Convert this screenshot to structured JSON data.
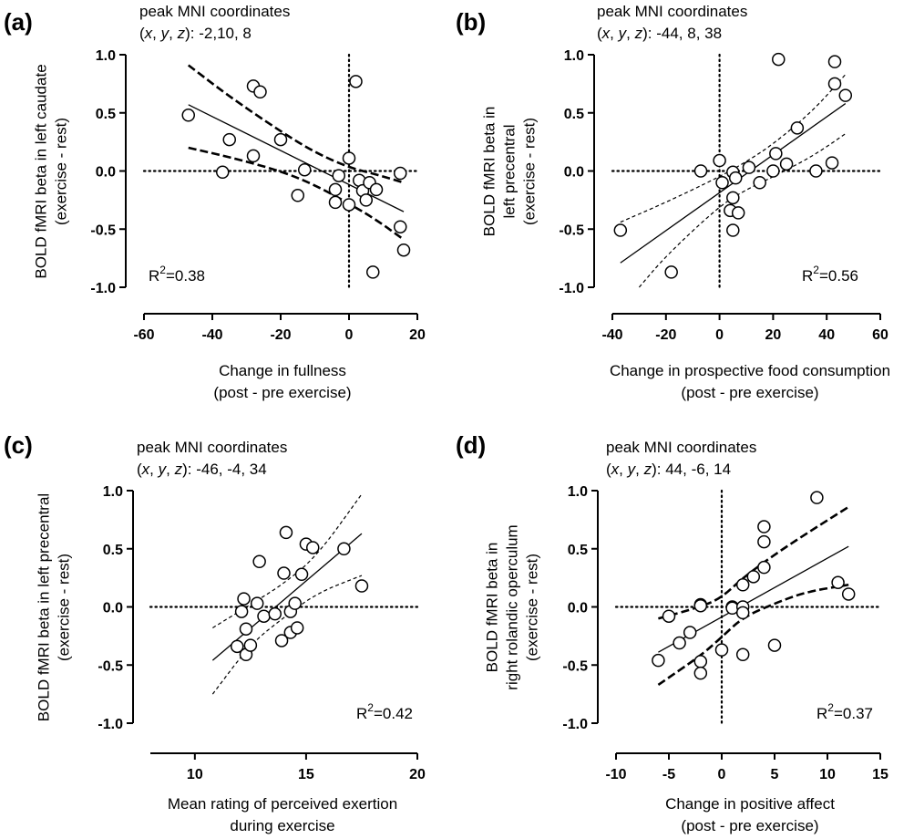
{
  "chart_data": [
    {
      "type": "scatter",
      "panel_label": "(a)",
      "header_line1": "peak MNI coordinates",
      "header_coords_prefix": "(x, y, z)",
      "header_coords_value": ": -2,10, 8",
      "xlabel_lines": [
        "Change in fullness",
        "(post - pre exercise)"
      ],
      "ylabel_lines": [
        "BOLD fMRI beta in left caudate",
        "(exercise - rest)"
      ],
      "r2_label": "R2=0.38",
      "xlim": [
        -60,
        20
      ],
      "ylim": [
        -1.0,
        1.0
      ],
      "xticks": [
        -60,
        -40,
        -20,
        0,
        20
      ],
      "xtick_labels": [
        "-60",
        "-40",
        "-20",
        "0",
        "20"
      ],
      "yticks": [
        -1.0,
        -0.5,
        0.0,
        0.5,
        1.0
      ],
      "ytick_labels": [
        "-1.0",
        "-0.5",
        "0.0",
        "0.5",
        "1.0"
      ],
      "zero_lines": [
        "x",
        "y"
      ],
      "ci_style": "heavy",
      "points": [
        [
          -47,
          0.48
        ],
        [
          -35,
          0.27
        ],
        [
          -37,
          -0.01
        ],
        [
          -28,
          0.73
        ],
        [
          -26,
          0.68
        ],
        [
          -28,
          0.13
        ],
        [
          -20,
          0.27
        ],
        [
          -13,
          0.01
        ],
        [
          -15,
          -0.21
        ],
        [
          -4,
          -0.16
        ],
        [
          -3,
          -0.04
        ],
        [
          -4,
          -0.27
        ],
        [
          0,
          0.11
        ],
        [
          0,
          -0.29
        ],
        [
          2,
          0.77
        ],
        [
          3,
          -0.08
        ],
        [
          4,
          -0.17
        ],
        [
          5,
          -0.25
        ],
        [
          6,
          -0.1
        ],
        [
          8,
          -0.16
        ],
        [
          7,
          -0.87
        ],
        [
          15,
          -0.02
        ],
        [
          15,
          -0.48
        ],
        [
          16,
          -0.68
        ]
      ],
      "fit": [
        [
          -47,
          0.57
        ],
        [
          16,
          -0.35
        ]
      ],
      "ci_upper": [
        [
          -47,
          0.91
        ],
        [
          -35,
          0.64
        ],
        [
          -20,
          0.34
        ],
        [
          -10,
          0.16
        ],
        [
          0,
          0.03
        ],
        [
          8,
          -0.03
        ],
        [
          16,
          -0.1
        ]
      ],
      "ci_lower": [
        [
          -47,
          0.2
        ],
        [
          -35,
          0.12
        ],
        [
          -20,
          0.0
        ],
        [
          -10,
          -0.12
        ],
        [
          0,
          -0.28
        ],
        [
          8,
          -0.42
        ],
        [
          16,
          -0.59
        ]
      ]
    },
    {
      "type": "scatter",
      "panel_label": "(b)",
      "header_line1": "peak MNI coordinates",
      "header_coords_prefix": "(x, y, z)",
      "header_coords_value": ": -44, 8, 38",
      "xlabel_lines": [
        "Change in prospective food consumption",
        "(post - pre exercise)"
      ],
      "ylabel_lines": [
        "BOLD fMRI beta in",
        "left precentral",
        "(exercise - rest)"
      ],
      "r2_label": "R2=0.56",
      "xlim": [
        -40,
        60
      ],
      "ylim": [
        -1.0,
        1.0
      ],
      "xticks": [
        -40,
        -20,
        0,
        20,
        40,
        60
      ],
      "xtick_labels": [
        "-40",
        "-20",
        "0",
        "20",
        "40",
        "60"
      ],
      "yticks": [
        -1.0,
        -0.5,
        0.0,
        0.5,
        1.0
      ],
      "ytick_labels": [
        "-1.0",
        "-0.5",
        "0.0",
        "0.5",
        "1.0"
      ],
      "zero_lines": [
        "x",
        "y"
      ],
      "ci_style": "light",
      "points": [
        [
          -37,
          -0.51
        ],
        [
          -18,
          -0.87
        ],
        [
          -7,
          0.0
        ],
        [
          0,
          0.09
        ],
        [
          1,
          -0.1
        ],
        [
          4,
          -0.34
        ],
        [
          5,
          -0.01
        ],
        [
          5,
          -0.23
        ],
        [
          5,
          -0.51
        ],
        [
          6,
          -0.06
        ],
        [
          7,
          -0.36
        ],
        [
          11,
          0.03
        ],
        [
          15,
          -0.1
        ],
        [
          20,
          0.0
        ],
        [
          21,
          0.15
        ],
        [
          22,
          0.96
        ],
        [
          25,
          0.06
        ],
        [
          29,
          0.37
        ],
        [
          36,
          0.0
        ],
        [
          42,
          0.07
        ],
        [
          43,
          0.94
        ],
        [
          43,
          0.75
        ],
        [
          47,
          0.65
        ]
      ],
      "fit": [
        [
          -37,
          -0.79
        ],
        [
          47,
          0.58
        ]
      ],
      "ci_upper": [
        [
          -37,
          -0.44
        ],
        [
          -20,
          -0.27
        ],
        [
          0,
          -0.05
        ],
        [
          10,
          0.08
        ],
        [
          20,
          0.23
        ],
        [
          35,
          0.52
        ],
        [
          47,
          0.83
        ]
      ],
      "ci_lower": [
        [
          -30,
          -1.0
        ],
        [
          -20,
          -0.73
        ],
        [
          0,
          -0.3
        ],
        [
          10,
          -0.16
        ],
        [
          20,
          -0.05
        ],
        [
          35,
          0.13
        ],
        [
          47,
          0.32
        ]
      ]
    },
    {
      "type": "scatter",
      "panel_label": "(c)",
      "header_line1": "peak MNI coordinates",
      "header_coords_prefix": "(x, y, z)",
      "header_coords_value": ": -46, -4, 34",
      "xlabel_lines": [
        "Mean rating of perceived exertion",
        "during exercise"
      ],
      "ylabel_lines": [
        "BOLD fMRI beta in left precentral",
        "(exercise - rest)"
      ],
      "r2_label": "R2=0.42",
      "xlim": [
        8,
        20
      ],
      "ylim": [
        -1.0,
        1.0
      ],
      "xticks": [
        10,
        15,
        20
      ],
      "xtick_labels": [
        "10",
        "15",
        "20"
      ],
      "yticks": [
        -1.0,
        -0.5,
        0.0,
        0.5,
        1.0
      ],
      "ytick_labels": [
        "-1.0",
        "-0.5",
        "0.0",
        "0.5",
        "1.0"
      ],
      "zero_lines": [
        "y"
      ],
      "ci_style": "light",
      "points": [
        [
          11.9,
          -0.34
        ],
        [
          12.1,
          -0.04
        ],
        [
          12.2,
          0.07
        ],
        [
          12.3,
          -0.19
        ],
        [
          12.3,
          -0.41
        ],
        [
          12.5,
          -0.33
        ],
        [
          12.8,
          0.03
        ],
        [
          12.9,
          0.39
        ],
        [
          13.1,
          -0.08
        ],
        [
          13.6,
          -0.06
        ],
        [
          13.9,
          -0.29
        ],
        [
          14.0,
          0.29
        ],
        [
          14.1,
          0.64
        ],
        [
          14.3,
          -0.22
        ],
        [
          14.3,
          -0.04
        ],
        [
          14.5,
          0.03
        ],
        [
          14.6,
          -0.18
        ],
        [
          14.8,
          0.28
        ],
        [
          15.0,
          0.54
        ],
        [
          15.3,
          0.51
        ],
        [
          16.7,
          0.5
        ],
        [
          17.5,
          0.18
        ]
      ],
      "fit": [
        [
          10.8,
          -0.46
        ],
        [
          17.5,
          0.63
        ]
      ],
      "ci_upper": [
        [
          10.8,
          -0.18
        ],
        [
          12.5,
          0.02
        ],
        [
          14,
          0.2
        ],
        [
          15.5,
          0.44
        ],
        [
          17.5,
          0.97
        ]
      ],
      "ci_lower": [
        [
          10.8,
          -0.75
        ],
        [
          12.5,
          -0.32
        ],
        [
          14,
          -0.09
        ],
        [
          15.5,
          0.12
        ],
        [
          17.5,
          0.27
        ]
      ]
    },
    {
      "type": "scatter",
      "panel_label": "(d)",
      "header_line1": "peak MNI coordinates",
      "header_coords_prefix": "(x, y, z)",
      "header_coords_value": ": 44, -6, 14",
      "xlabel_lines": [
        "Change in positive affect",
        "(post - pre exercise)"
      ],
      "ylabel_lines": [
        "BOLD fMRI beta in",
        "right rolandic operculum",
        "(exercise - rest)"
      ],
      "r2_label": "R2=0.37",
      "xlim": [
        -10,
        15
      ],
      "ylim": [
        -1.0,
        1.0
      ],
      "xticks": [
        -10,
        -5,
        0,
        5,
        10,
        15
      ],
      "xtick_labels": [
        "-10",
        "-5",
        "0",
        "5",
        "10",
        "15"
      ],
      "yticks": [
        -1.0,
        -0.5,
        0.0,
        0.5,
        1.0
      ],
      "ytick_labels": [
        "-1.0",
        "-0.5",
        "0.0",
        "0.5",
        "1.0"
      ],
      "zero_lines": [
        "x",
        "y"
      ],
      "ci_style": "heavy",
      "points": [
        [
          -6,
          -0.46
        ],
        [
          -5,
          -0.08
        ],
        [
          -4,
          -0.31
        ],
        [
          -3,
          -0.22
        ],
        [
          -2,
          0.02
        ],
        [
          -2,
          0.01
        ],
        [
          -2,
          -0.47
        ],
        [
          -2,
          -0.57
        ],
        [
          0,
          -0.37
        ],
        [
          1,
          0.0
        ],
        [
          1,
          -0.01
        ],
        [
          2,
          0.19
        ],
        [
          2,
          0.0
        ],
        [
          2,
          -0.05
        ],
        [
          2,
          -0.41
        ],
        [
          3,
          0.26
        ],
        [
          4,
          0.69
        ],
        [
          4,
          0.56
        ],
        [
          4,
          0.34
        ],
        [
          5,
          -0.33
        ],
        [
          9,
          0.94
        ],
        [
          11,
          0.21
        ],
        [
          12,
          0.11
        ]
      ],
      "fit": [
        [
          -6,
          -0.39
        ],
        [
          12,
          0.52
        ]
      ],
      "ci_upper": [
        [
          -6,
          -0.1
        ],
        [
          -2,
          0.0
        ],
        [
          0,
          0.08
        ],
        [
          2,
          0.25
        ],
        [
          5,
          0.45
        ],
        [
          8,
          0.63
        ],
        [
          12,
          0.86
        ]
      ],
      "ci_lower": [
        [
          -6,
          -0.67
        ],
        [
          -2,
          -0.42
        ],
        [
          0,
          -0.26
        ],
        [
          2,
          -0.09
        ],
        [
          5,
          0.03
        ],
        [
          8,
          0.13
        ],
        [
          12,
          0.19
        ]
      ]
    }
  ]
}
